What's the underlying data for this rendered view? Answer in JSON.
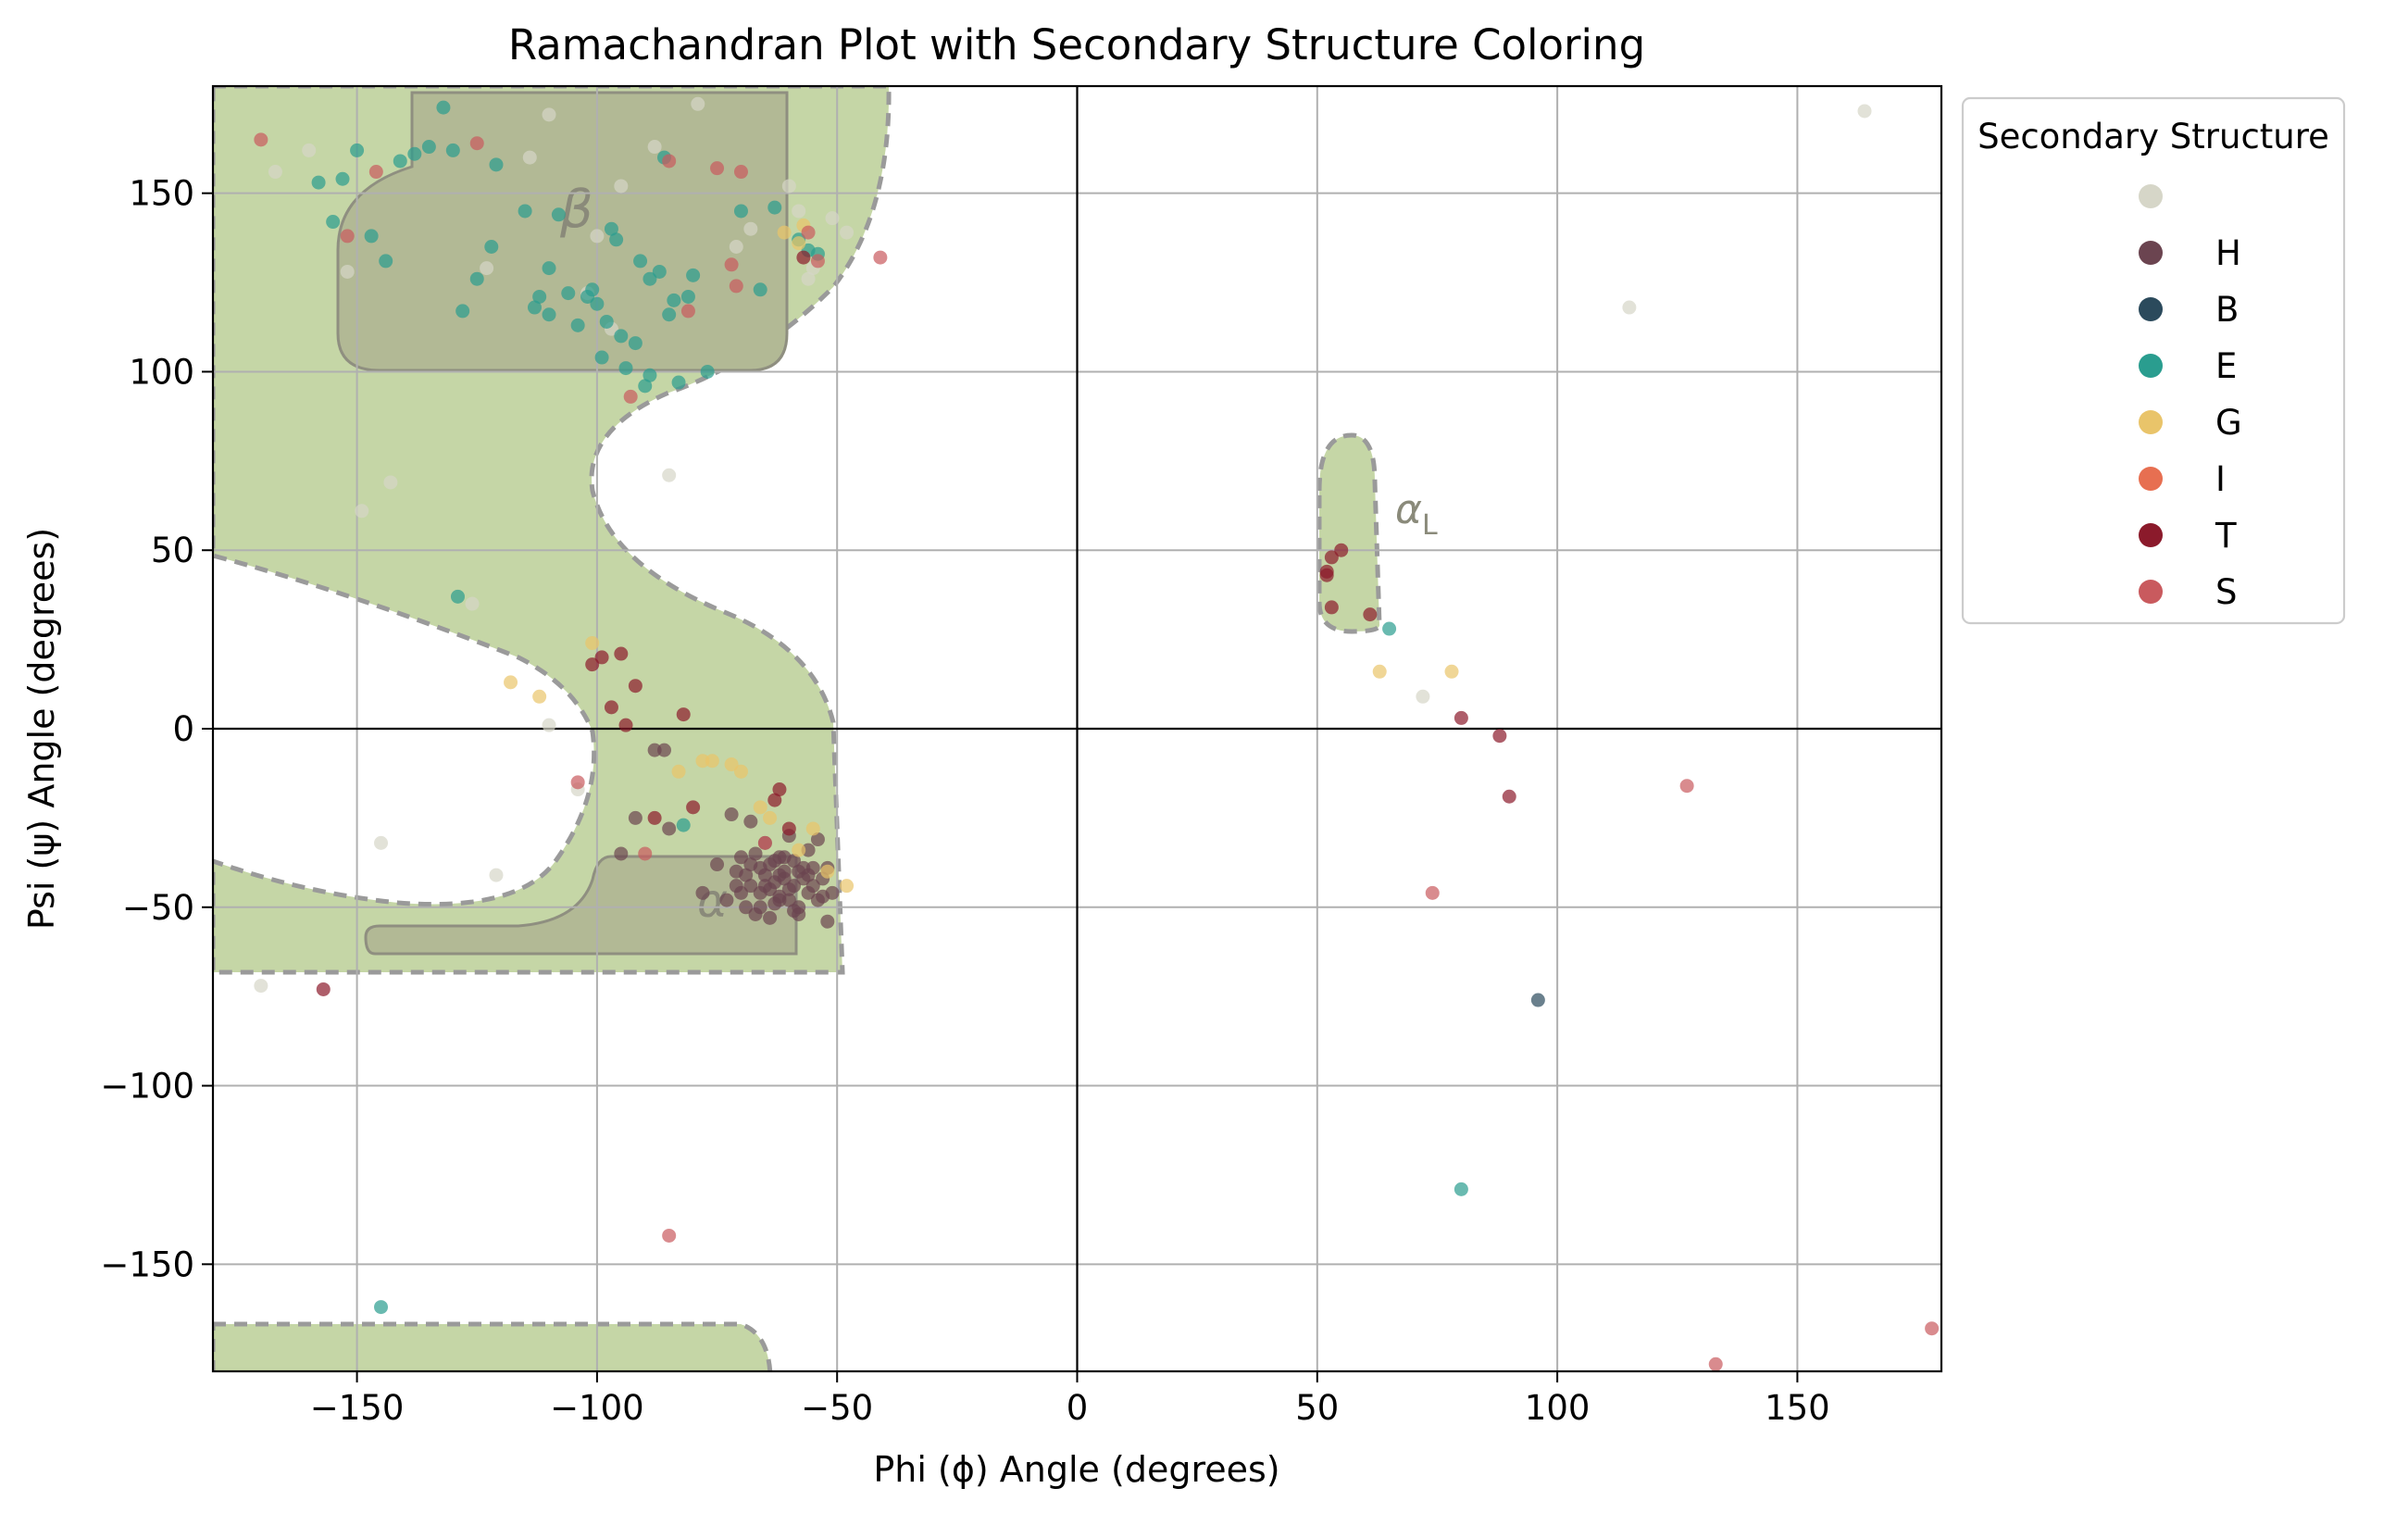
{
  "chart_data": {
    "type": "scatter",
    "title": "Ramachandran Plot with Secondary Structure Coloring",
    "xlabel": "Phi (ϕ) Angle (degrees)",
    "ylabel": "Psi (ψ) Angle (degrees)",
    "xlim": [
      -180,
      180
    ],
    "ylim": [
      -180,
      180
    ],
    "xticks": [
      -150,
      -100,
      -50,
      0,
      50,
      100,
      150
    ],
    "yticks": [
      -150,
      -100,
      -50,
      0,
      50,
      100,
      150
    ],
    "xtick_labels": [
      "−150",
      "−100",
      "−50",
      "0",
      "50",
      "100",
      "150"
    ],
    "ytick_labels": [
      "−150",
      "−100",
      "−50",
      "0",
      "50",
      "100",
      "150"
    ],
    "grid": true,
    "legend": {
      "title": "Secondary Structure",
      "placement": "outside upper right"
    },
    "region_labels": {
      "beta": "β",
      "alpha_right": "α",
      "alpha_left": "α",
      "alpha_left_sub": "L"
    },
    "colors": {
      "region_fill": "#c5d6a6",
      "region_core": "#b2b995",
      "region_edge": "#9a9a9a",
      "grid": "#b0b0b0"
    },
    "series": [
      {
        "name": "",
        "color": "#d6d6c8",
        "points": [
          [
            -167,
            156
          ],
          [
            -160,
            162
          ],
          [
            -152,
            128
          ],
          [
            -143,
            69
          ],
          [
            -149,
            61
          ],
          [
            -145,
            -32
          ],
          [
            -121,
            -41
          ],
          [
            -126,
            35
          ],
          [
            -123,
            129
          ],
          [
            -114,
            160
          ],
          [
            -110,
            172
          ],
          [
            -110,
            1
          ],
          [
            -102,
            122
          ],
          [
            -104,
            -17
          ],
          [
            -100,
            138
          ],
          [
            -97,
            112
          ],
          [
            -95,
            152
          ],
          [
            -88,
            163
          ],
          [
            -85,
            71
          ],
          [
            -79,
            175
          ],
          [
            -71,
            135
          ],
          [
            -68,
            140
          ],
          [
            -60,
            152
          ],
          [
            -58,
            145
          ],
          [
            -55,
            129
          ],
          [
            -51,
            143
          ],
          [
            -48,
            139
          ],
          [
            -56,
            126
          ],
          [
            115,
            118
          ],
          [
            164,
            173
          ],
          [
            -170,
            -72
          ],
          [
            72,
            9
          ]
        ]
      },
      {
        "name": "H",
        "color": "#6b4450",
        "points": [
          [
            -95,
            -35
          ],
          [
            -92,
            -25
          ],
          [
            -88,
            -6
          ],
          [
            -86,
            -6
          ],
          [
            -85,
            -28
          ],
          [
            -78,
            -46
          ],
          [
            -75,
            -38
          ],
          [
            -73,
            -48
          ],
          [
            -71,
            -40
          ],
          [
            -70,
            -36
          ],
          [
            -69,
            -50
          ],
          [
            -68,
            -44
          ],
          [
            -67,
            -35
          ],
          [
            -66,
            -46
          ],
          [
            -65,
            -41
          ],
          [
            -64,
            -38
          ],
          [
            -64,
            -53
          ],
          [
            -63,
            -43
          ],
          [
            -62,
            -36
          ],
          [
            -62,
            -48
          ],
          [
            -61,
            -40
          ],
          [
            -60,
            -45
          ],
          [
            -59,
            -37
          ],
          [
            -58,
            -50
          ],
          [
            -57,
            -42
          ],
          [
            -56,
            -46
          ],
          [
            -56,
            -34
          ],
          [
            -55,
            -39
          ],
          [
            -54,
            -48
          ],
          [
            -53,
            -42
          ],
          [
            -52,
            -54
          ],
          [
            -51,
            -46
          ],
          [
            -60,
            -30
          ],
          [
            -65,
            -32
          ],
          [
            -68,
            -26
          ],
          [
            -72,
            -24
          ],
          [
            -58,
            -52
          ],
          [
            -62,
            -47
          ],
          [
            -66,
            -39
          ],
          [
            -63,
            -49
          ],
          [
            -61,
            -42
          ],
          [
            -59,
            -44
          ],
          [
            -57,
            -39
          ],
          [
            -64,
            -45
          ],
          [
            -66,
            -50
          ],
          [
            -69,
            -41
          ],
          [
            -70,
            -46
          ],
          [
            -61,
            -36
          ],
          [
            -55,
            -44
          ],
          [
            -52,
            -39
          ],
          [
            -54,
            -31
          ],
          [
            -67,
            -52
          ],
          [
            -62,
            -41
          ],
          [
            -60,
            -48
          ],
          [
            -58,
            -40
          ],
          [
            -65,
            -44
          ],
          [
            -63,
            -37
          ],
          [
            -68,
            -38
          ],
          [
            -59,
            -51
          ],
          [
            -71,
            -44
          ],
          [
            -53,
            -47
          ],
          [
            -56,
            -41
          ]
        ]
      },
      {
        "name": "B",
        "color": "#2b4a5c",
        "points": [
          [
            96,
            -76
          ]
        ]
      },
      {
        "name": "E",
        "color": "#2a9d8f",
        "points": [
          [
            -158,
            153
          ],
          [
            -155,
            142
          ],
          [
            -153,
            154
          ],
          [
            -150,
            162
          ],
          [
            -147,
            138
          ],
          [
            -144,
            131
          ],
          [
            -141,
            159
          ],
          [
            -138,
            161
          ],
          [
            -135,
            163
          ],
          [
            -132,
            174
          ],
          [
            -130,
            162
          ],
          [
            -128,
            117
          ],
          [
            -125,
            126
          ],
          [
            -122,
            135
          ],
          [
            -121,
            158
          ],
          [
            -115,
            145
          ],
          [
            -113,
            118
          ],
          [
            -112,
            121
          ],
          [
            -110,
            129
          ],
          [
            -108,
            144
          ],
          [
            -106,
            122
          ],
          [
            -104,
            113
          ],
          [
            -102,
            121
          ],
          [
            -101,
            123
          ],
          [
            -100,
            119
          ],
          [
            -99,
            104
          ],
          [
            -98,
            114
          ],
          [
            -97,
            140
          ],
          [
            -96,
            137
          ],
          [
            -95,
            110
          ],
          [
            -94,
            101
          ],
          [
            -92,
            108
          ],
          [
            -91,
            131
          ],
          [
            -90,
            96
          ],
          [
            -89,
            99
          ],
          [
            -87,
            128
          ],
          [
            -86,
            160
          ],
          [
            -85,
            116
          ],
          [
            -84,
            120
          ],
          [
            -83,
            97
          ],
          [
            -81,
            121
          ],
          [
            -80,
            127
          ],
          [
            -77,
            100
          ],
          [
            -70,
            145
          ],
          [
            -66,
            123
          ],
          [
            -63,
            146
          ],
          [
            -129,
            37
          ],
          [
            -145,
            -162
          ],
          [
            -82,
            -27
          ],
          [
            65,
            28
          ],
          [
            80,
            -129
          ],
          [
            -56,
            134
          ],
          [
            -54,
            133
          ],
          [
            -58,
            137
          ],
          [
            -110,
            116
          ],
          [
            -89,
            126
          ]
        ]
      },
      {
        "name": "G",
        "color": "#e9c46a",
        "points": [
          [
            -118,
            13
          ],
          [
            -112,
            9
          ],
          [
            -101,
            24
          ],
          [
            -83,
            -12
          ],
          [
            -78,
            -9
          ],
          [
            -76,
            -9
          ],
          [
            -72,
            -10
          ],
          [
            -70,
            -12
          ],
          [
            -66,
            -22
          ],
          [
            -64,
            -25
          ],
          [
            -58,
            -34
          ],
          [
            -55,
            -28
          ],
          [
            -52,
            -40
          ],
          [
            -48,
            -44
          ],
          [
            -58,
            136
          ],
          [
            -61,
            139
          ],
          [
            -57,
            141
          ],
          [
            63,
            16
          ],
          [
            78,
            16
          ]
        ]
      },
      {
        "name": "I",
        "color": "#e76f51",
        "points": []
      },
      {
        "name": "T",
        "color": "#8b1a2b",
        "points": [
          [
            -157,
            -73
          ],
          [
            -101,
            18
          ],
          [
            -99,
            20
          ],
          [
            -97,
            6
          ],
          [
            -95,
            21
          ],
          [
            -94,
            1
          ],
          [
            -92,
            12
          ],
          [
            -88,
            -25
          ],
          [
            -82,
            4
          ],
          [
            -80,
            -22
          ],
          [
            -63,
            -20
          ],
          [
            -62,
            -17
          ],
          [
            -60,
            -28
          ],
          [
            -57,
            132
          ],
          [
            52,
            44
          ],
          [
            53,
            48
          ],
          [
            53,
            34
          ],
          [
            55,
            50
          ],
          [
            52,
            43
          ],
          [
            61,
            32
          ],
          [
            80,
            3
          ],
          [
            88,
            -2
          ],
          [
            90,
            -19
          ]
        ]
      },
      {
        "name": "S",
        "color": "#c95a5e",
        "points": [
          [
            -170,
            165
          ],
          [
            -152,
            138
          ],
          [
            -146,
            156
          ],
          [
            -125,
            164
          ],
          [
            -93,
            93
          ],
          [
            -90,
            -35
          ],
          [
            -85,
            159
          ],
          [
            -75,
            157
          ],
          [
            -71,
            124
          ],
          [
            -70,
            156
          ],
          [
            -65,
            -32
          ],
          [
            -56,
            139
          ],
          [
            -54,
            131
          ],
          [
            -41,
            132
          ],
          [
            -85,
            -142
          ],
          [
            -104,
            -15
          ],
          [
            74,
            -46
          ],
          [
            127,
            -16
          ],
          [
            133,
            -178
          ],
          [
            178,
            -168
          ],
          [
            -72,
            130
          ],
          [
            -81,
            117
          ]
        ]
      }
    ]
  }
}
